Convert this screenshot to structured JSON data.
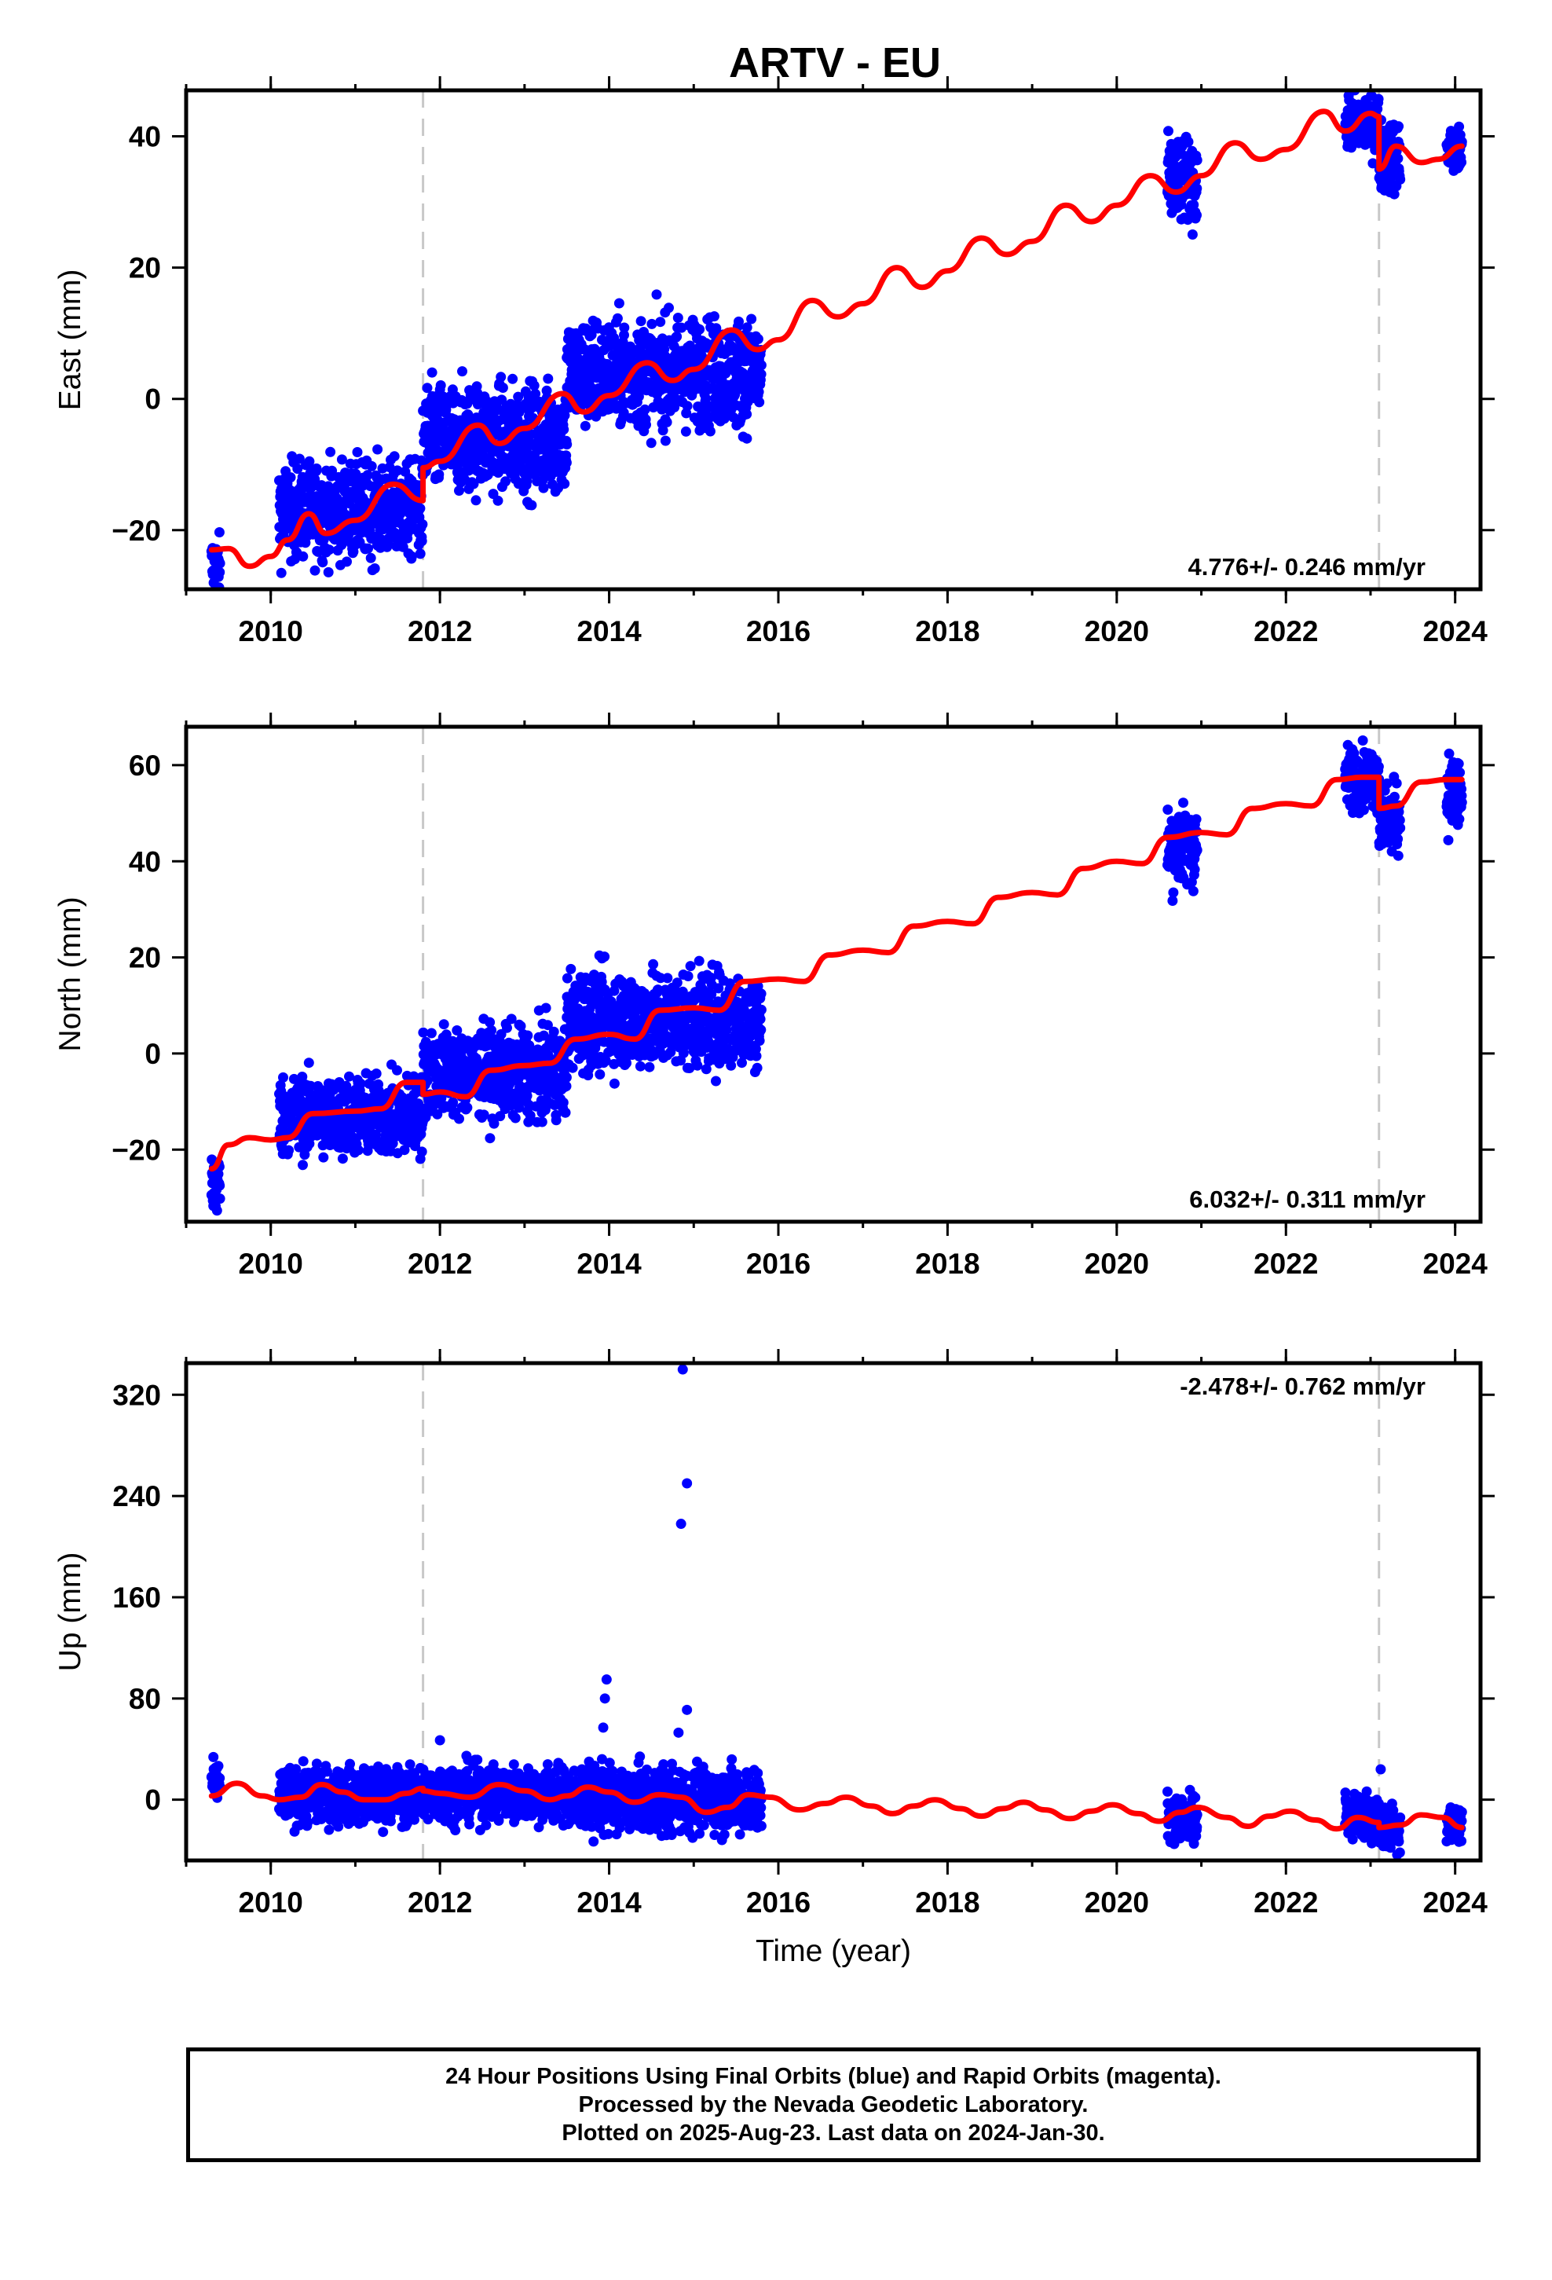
{
  "title": "ARTV - EU",
  "colors": {
    "data": "#0000ff",
    "model": "#ff0000",
    "offset_line": "#c8c8c8",
    "frame": "#000000"
  },
  "chart_data": [
    {
      "type": "scatter",
      "panel": "east",
      "ylabel": "East (mm)",
      "xlabel": "",
      "xlim": [
        2009.0,
        2024.3
      ],
      "ylim": [
        -29,
        47
      ],
      "xticks": [
        2010,
        2012,
        2014,
        2016,
        2018,
        2020,
        2022,
        2024
      ],
      "yticks": [
        -20,
        0,
        20,
        40
      ],
      "rate_label": "4.776+/- 0.246 mm/yr",
      "rate_position": "bottom-right",
      "offset_epochs": [
        2011.8,
        2023.1
      ],
      "data_segments": [
        {
          "start": 2009.3,
          "end": 2009.4,
          "center_value": -25.5,
          "spread": 2.5
        },
        {
          "start": 2010.1,
          "end": 2011.8,
          "center_value": -17.0,
          "spread": 4.0
        },
        {
          "start": 2011.8,
          "end": 2013.5,
          "center_value": -6.0,
          "spread": 4.5
        },
        {
          "start": 2013.5,
          "end": 2015.8,
          "center_value": 4.0,
          "spread": 4.5
        },
        {
          "start": 2020.6,
          "end": 2020.95,
          "center_value": 33.0,
          "spread": 3.5
        },
        {
          "start": 2022.7,
          "end": 2023.1,
          "center_value": 42.0,
          "spread": 2.5
        },
        {
          "start": 2023.1,
          "end": 2023.35,
          "center_value": 37.0,
          "spread": 3.0
        },
        {
          "start": 2023.9,
          "end": 2024.08,
          "center_value": 37.5,
          "spread": 2.0
        }
      ],
      "model_points": [
        [
          2009.3,
          -23.0
        ],
        [
          2009.5,
          -22.8
        ],
        [
          2009.75,
          -25.5
        ],
        [
          2010.0,
          -24.0
        ],
        [
          2010.2,
          -21.5
        ],
        [
          2010.45,
          -17.5
        ],
        [
          2010.65,
          -20.5
        ],
        [
          2011.0,
          -18.5
        ],
        [
          2011.45,
          -13.0
        ],
        [
          2011.8,
          -15.5
        ],
        [
          2011.8,
          -10.5
        ],
        [
          2012.0,
          -9.5
        ],
        [
          2012.45,
          -4.0
        ],
        [
          2012.7,
          -6.8
        ],
        [
          2013.0,
          -4.5
        ],
        [
          2013.45,
          0.8
        ],
        [
          2013.7,
          -2.0
        ],
        [
          2014.0,
          0.5
        ],
        [
          2014.45,
          5.5
        ],
        [
          2014.75,
          2.8
        ],
        [
          2015.0,
          4.5
        ],
        [
          2015.45,
          10.5
        ],
        [
          2015.75,
          7.5
        ],
        [
          2016.0,
          9.0
        ],
        [
          2016.4,
          15.0
        ],
        [
          2016.7,
          12.5
        ],
        [
          2017.0,
          14.5
        ],
        [
          2017.4,
          20.0
        ],
        [
          2017.7,
          17.0
        ],
        [
          2018.0,
          19.5
        ],
        [
          2018.4,
          24.5
        ],
        [
          2018.7,
          22.0
        ],
        [
          2019.0,
          24.0
        ],
        [
          2019.4,
          29.5
        ],
        [
          2019.7,
          27.0
        ],
        [
          2020.0,
          29.5
        ],
        [
          2020.4,
          34.0
        ],
        [
          2020.7,
          31.5
        ],
        [
          2021.0,
          34.0
        ],
        [
          2021.4,
          39.0
        ],
        [
          2021.7,
          36.5
        ],
        [
          2022.0,
          38.0
        ],
        [
          2022.45,
          43.8
        ],
        [
          2022.7,
          40.8
        ],
        [
          2023.0,
          43.5
        ],
        [
          2023.1,
          43.0
        ],
        [
          2023.1,
          35.0
        ],
        [
          2023.3,
          38.5
        ],
        [
          2023.6,
          36.0
        ],
        [
          2023.8,
          36.5
        ],
        [
          2024.08,
          38.5
        ]
      ]
    },
    {
      "type": "scatter",
      "panel": "north",
      "ylabel": "North (mm)",
      "xlabel": "",
      "xlim": [
        2009.0,
        2024.3
      ],
      "ylim": [
        -35,
        68
      ],
      "xticks": [
        2010,
        2012,
        2014,
        2016,
        2018,
        2020,
        2022,
        2024
      ],
      "yticks": [
        -20,
        0,
        20,
        40,
        60
      ],
      "rate_label": "6.032+/- 0.311 mm/yr",
      "rate_position": "bottom-right",
      "offset_epochs": [
        2011.8,
        2023.1
      ],
      "data_segments": [
        {
          "start": 2009.3,
          "end": 2009.4,
          "center_value": -27.0,
          "spread": 4.0
        },
        {
          "start": 2010.1,
          "end": 2011.8,
          "center_value": -13.0,
          "spread": 4.5
        },
        {
          "start": 2011.8,
          "end": 2013.5,
          "center_value": -4.0,
          "spread": 5.0
        },
        {
          "start": 2013.5,
          "end": 2015.8,
          "center_value": 7.0,
          "spread": 5.5
        },
        {
          "start": 2020.6,
          "end": 2020.95,
          "center_value": 43.0,
          "spread": 4.5
        },
        {
          "start": 2022.7,
          "end": 2023.1,
          "center_value": 57.5,
          "spread": 3.5
        },
        {
          "start": 2023.1,
          "end": 2023.35,
          "center_value": 49.0,
          "spread": 4.0
        },
        {
          "start": 2023.9,
          "end": 2024.08,
          "center_value": 54.0,
          "spread": 4.5
        }
      ],
      "model_points": [
        [
          2009.3,
          -24.0
        ],
        [
          2009.5,
          -19.0
        ],
        [
          2009.75,
          -17.5
        ],
        [
          2010.0,
          -18.0
        ],
        [
          2010.2,
          -17.5
        ],
        [
          2010.5,
          -12.5
        ],
        [
          2011.0,
          -12.0
        ],
        [
          2011.3,
          -11.5
        ],
        [
          2011.6,
          -6.0
        ],
        [
          2011.8,
          -6.0
        ],
        [
          2011.8,
          -8.5
        ],
        [
          2012.0,
          -8.0
        ],
        [
          2012.3,
          -9.0
        ],
        [
          2012.6,
          -3.5
        ],
        [
          2013.0,
          -2.5
        ],
        [
          2013.3,
          -2.0
        ],
        [
          2013.6,
          3.0
        ],
        [
          2014.0,
          4.0
        ],
        [
          2014.3,
          3.0
        ],
        [
          2014.6,
          9.0
        ],
        [
          2015.0,
          9.5
        ],
        [
          2015.3,
          9.0
        ],
        [
          2015.6,
          15.0
        ],
        [
          2016.0,
          15.5
        ],
        [
          2016.3,
          15.0
        ],
        [
          2016.6,
          20.5
        ],
        [
          2017.0,
          21.5
        ],
        [
          2017.3,
          21.0
        ],
        [
          2017.6,
          26.5
        ],
        [
          2018.0,
          27.5
        ],
        [
          2018.3,
          27.0
        ],
        [
          2018.6,
          32.5
        ],
        [
          2019.0,
          33.5
        ],
        [
          2019.3,
          33.0
        ],
        [
          2019.6,
          38.5
        ],
        [
          2020.0,
          40.0
        ],
        [
          2020.3,
          39.5
        ],
        [
          2020.6,
          45.0
        ],
        [
          2021.0,
          46.0
        ],
        [
          2021.3,
          45.5
        ],
        [
          2021.6,
          51.0
        ],
        [
          2022.0,
          52.0
        ],
        [
          2022.3,
          51.5
        ],
        [
          2022.6,
          57.0
        ],
        [
          2022.9,
          57.5
        ],
        [
          2023.1,
          57.5
        ],
        [
          2023.1,
          51.0
        ],
        [
          2023.3,
          51.5
        ],
        [
          2023.6,
          56.5
        ],
        [
          2023.9,
          57.0
        ],
        [
          2024.08,
          57.0
        ]
      ]
    },
    {
      "type": "scatter",
      "panel": "up",
      "ylabel": "Up (mm)",
      "xlabel": "Time (year)",
      "xlim": [
        2009.0,
        2024.3
      ],
      "ylim": [
        -48,
        345
      ],
      "xticks": [
        2010,
        2012,
        2014,
        2016,
        2018,
        2020,
        2022,
        2024
      ],
      "yticks": [
        0,
        80,
        160,
        240,
        320
      ],
      "rate_label": "-2.478+/- 0.762 mm/yr",
      "rate_position": "top-right",
      "offset_epochs": [
        2011.8,
        2023.1
      ],
      "data_segments": [
        {
          "start": 2009.3,
          "end": 2009.4,
          "center_value": 14.0,
          "spread": 8.0
        },
        {
          "start": 2010.1,
          "end": 2011.8,
          "center_value": 3.0,
          "spread": 12.0
        },
        {
          "start": 2011.8,
          "end": 2013.5,
          "center_value": 5.0,
          "spread": 12.0
        },
        {
          "start": 2013.5,
          "end": 2015.8,
          "center_value": 0.0,
          "spread": 14.0
        },
        {
          "start": 2020.6,
          "end": 2020.95,
          "center_value": -14.0,
          "spread": 10.0
        },
        {
          "start": 2022.7,
          "end": 2023.1,
          "center_value": -12.0,
          "spread": 10.0
        },
        {
          "start": 2023.1,
          "end": 2023.35,
          "center_value": -22.0,
          "spread": 10.0
        },
        {
          "start": 2023.9,
          "end": 2024.08,
          "center_value": -18.0,
          "spread": 10.0
        }
      ],
      "outliers": [
        [
          2014.87,
          340.0
        ],
        [
          2014.92,
          250.0
        ],
        [
          2014.85,
          218.0
        ],
        [
          2013.97,
          95.0
        ],
        [
          2013.95,
          80.0
        ],
        [
          2014.92,
          71.0
        ],
        [
          2013.93,
          57.0
        ],
        [
          2014.82,
          53.0
        ],
        [
          2012.0,
          47.0
        ],
        [
          2023.12,
          24.0
        ]
      ],
      "model_points": [
        [
          2009.3,
          3.0
        ],
        [
          2009.6,
          13.0
        ],
        [
          2009.9,
          3.0
        ],
        [
          2010.1,
          0.0
        ],
        [
          2010.35,
          2.0
        ],
        [
          2010.6,
          12.0
        ],
        [
          2010.85,
          6.0
        ],
        [
          2011.1,
          0.0
        ],
        [
          2011.35,
          0.0
        ],
        [
          2011.6,
          5.0
        ],
        [
          2011.8,
          9.0
        ],
        [
          2011.8,
          7.0
        ],
        [
          2012.0,
          5.0
        ],
        [
          2012.35,
          2.0
        ],
        [
          2012.7,
          12.0
        ],
        [
          2013.0,
          7.0
        ],
        [
          2013.3,
          0.0
        ],
        [
          2013.5,
          3.0
        ],
        [
          2013.75,
          10.0
        ],
        [
          2014.0,
          6.0
        ],
        [
          2014.3,
          -2.0
        ],
        [
          2014.6,
          4.0
        ],
        [
          2014.85,
          2.0
        ],
        [
          2015.15,
          -10.0
        ],
        [
          2015.4,
          -6.0
        ],
        [
          2015.65,
          4.0
        ],
        [
          2015.9,
          2.0
        ],
        [
          2016.25,
          -8.0
        ],
        [
          2016.55,
          -3.0
        ],
        [
          2016.8,
          2.0
        ],
        [
          2017.1,
          -5.0
        ],
        [
          2017.35,
          -11.0
        ],
        [
          2017.6,
          -5.0
        ],
        [
          2017.85,
          0.0
        ],
        [
          2018.15,
          -7.0
        ],
        [
          2018.4,
          -13.0
        ],
        [
          2018.65,
          -7.0
        ],
        [
          2018.9,
          -2.0
        ],
        [
          2019.15,
          -8.0
        ],
        [
          2019.45,
          -15.0
        ],
        [
          2019.7,
          -9.0
        ],
        [
          2019.95,
          -4.0
        ],
        [
          2020.25,
          -11.0
        ],
        [
          2020.5,
          -17.0
        ],
        [
          2020.75,
          -10.0
        ],
        [
          2020.95,
          -6.0
        ],
        [
          2021.3,
          -14.0
        ],
        [
          2021.55,
          -21.0
        ],
        [
          2021.8,
          -13.0
        ],
        [
          2022.05,
          -9.0
        ],
        [
          2022.35,
          -16.0
        ],
        [
          2022.6,
          -23.0
        ],
        [
          2022.85,
          -14.0
        ],
        [
          2023.1,
          -18.0
        ],
        [
          2023.1,
          -22.0
        ],
        [
          2023.35,
          -20.0
        ],
        [
          2023.6,
          -12.0
        ],
        [
          2023.85,
          -14.0
        ],
        [
          2024.08,
          -22.0
        ]
      ]
    }
  ],
  "footer": {
    "line1": "24 Hour Positions Using Final Orbits (blue) and Rapid Orbits (magenta).",
    "line2": "Processed by the Nevada Geodetic Laboratory.",
    "line3": "Plotted on 2025-Aug-23. Last data on 2024-Jan-30."
  }
}
